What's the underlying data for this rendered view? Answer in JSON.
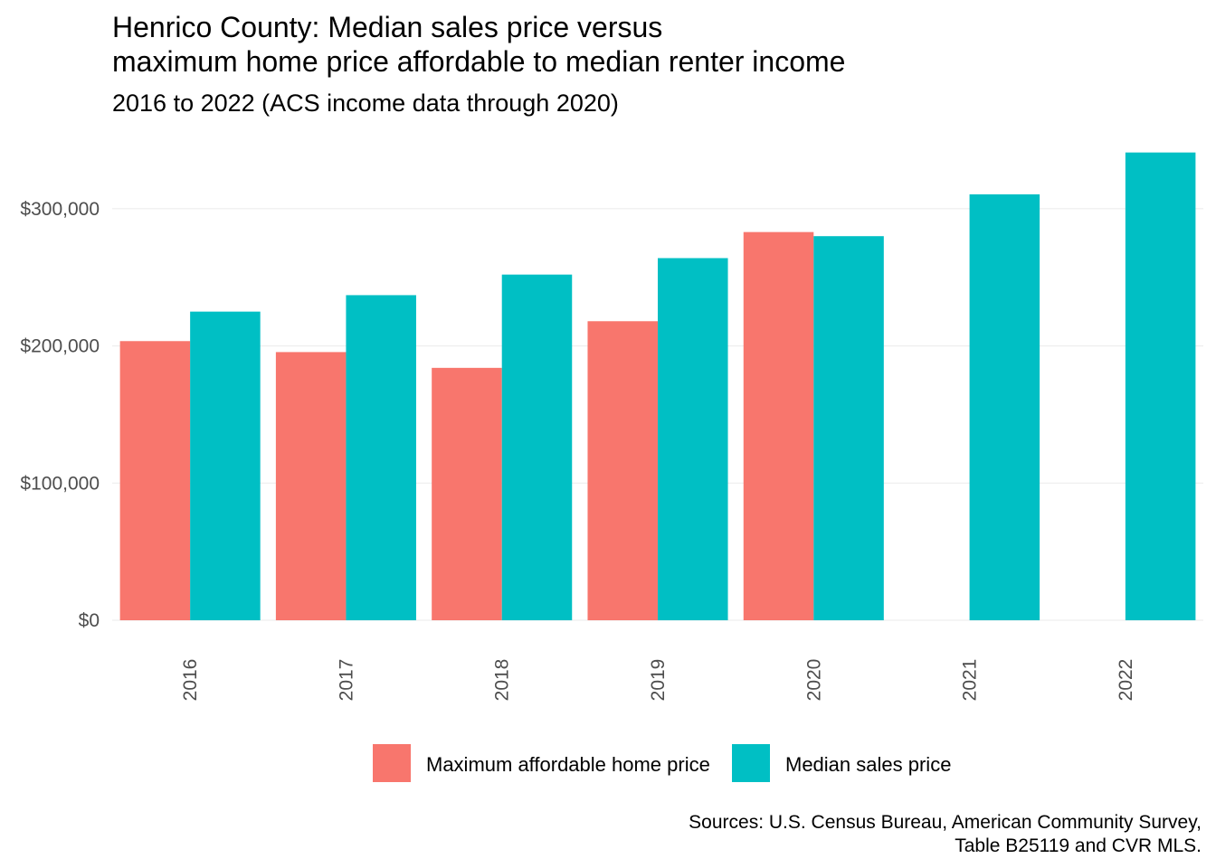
{
  "chart_data": {
    "type": "bar",
    "title_lines": [
      "Henrico County: Median sales price versus",
      "maximum home price affordable to median renter income"
    ],
    "subtitle": "2016 to 2022 (ACS income data through 2020)",
    "caption_lines": [
      "Sources: U.S. Census Bureau, American Community Survey,",
      "Table B25119 and CVR MLS."
    ],
    "xlabel": "",
    "ylabel": "",
    "categories": [
      "2016",
      "2017",
      "2018",
      "2019",
      "2020",
      "2021",
      "2022"
    ],
    "series": [
      {
        "name": "Maximum affordable home price",
        "color": "#F8766D",
        "values": [
          203500,
          195500,
          184000,
          218000,
          283000,
          null,
          null
        ]
      },
      {
        "name": "Median sales price",
        "color": "#00BFC4",
        "values": [
          225000,
          237000,
          252000,
          264000,
          280000,
          310500,
          341000
        ]
      }
    ],
    "ylim": [
      0,
      350000
    ],
    "yticks": [
      0,
      100000,
      200000,
      300000
    ],
    "ytick_labels": [
      "$0",
      "$100,000",
      "$200,000",
      "$300,000"
    ],
    "grid": true,
    "legend_position": "bottom"
  }
}
